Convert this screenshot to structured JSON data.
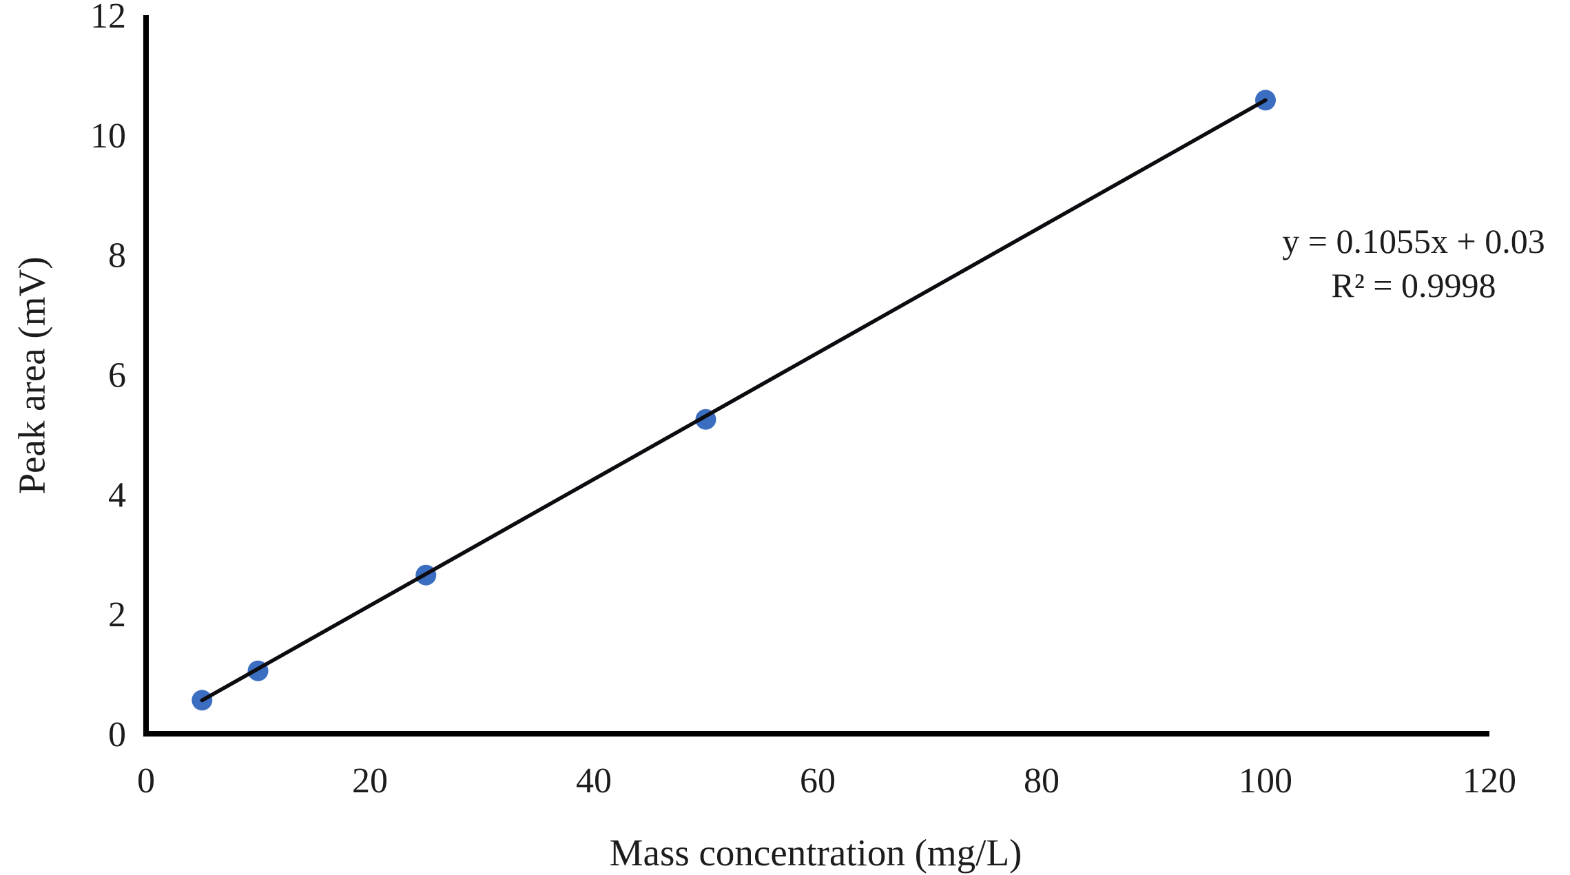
{
  "figure": {
    "background": "#ffffff"
  },
  "chart_data": {
    "type": "scatter",
    "title": "",
    "xlabel": "Mass concentration (mg/L)",
    "ylabel": "Peak area (mV)",
    "points": {
      "x": [
        5,
        10,
        25,
        50,
        100
      ],
      "y": [
        0.56,
        1.05,
        2.65,
        5.25,
        10.58
      ]
    },
    "trendline": {
      "equation": "y = 0.1055x + 0.03",
      "r_squared": "R² = 0.9998",
      "slope": 0.1055,
      "intercept": 0.03,
      "x_start": 5,
      "x_end": 100
    },
    "xlim": [
      0,
      120
    ],
    "ylim": [
      0,
      12
    ],
    "x_ticks": [
      0,
      20,
      40,
      60,
      80,
      100,
      120
    ],
    "y_ticks": [
      0,
      2,
      4,
      6,
      8,
      10,
      12
    ],
    "grid": false,
    "legend": "none",
    "marker": {
      "shape": "circle",
      "color": "#3B6DC1",
      "radius_px": 15
    },
    "line_color": "#0b0b10",
    "axis_color": "#000000",
    "text_color": "#1c1c1c"
  }
}
